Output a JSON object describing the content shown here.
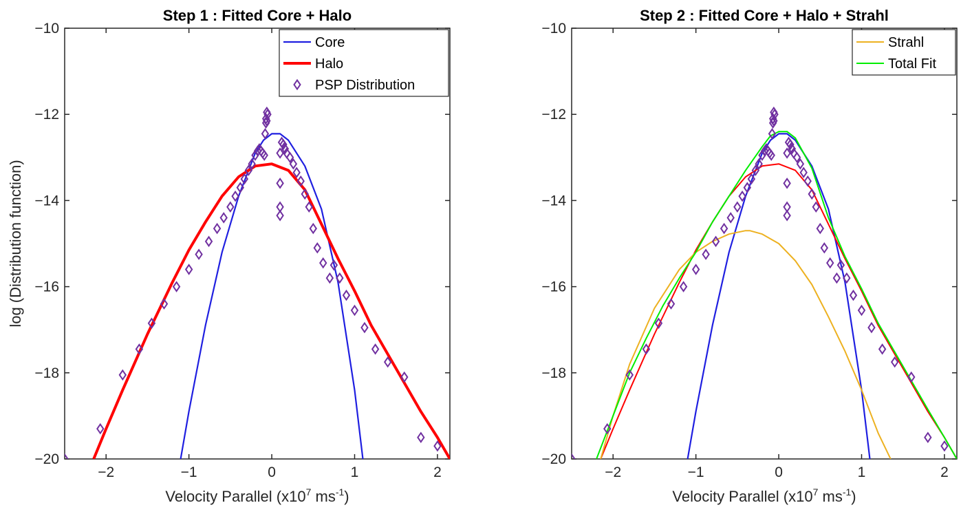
{
  "chart_data": [
    {
      "type": "line",
      "title": "Step 1 : Fitted Core + Halo",
      "xlabel": "Velocity Parallel (x10^7 ms^-1)",
      "xlabel_parts": {
        "main": "Velocity Parallel (x10",
        "exp1": "7",
        "mid": " ms",
        "exp2": "-1",
        "end": ")"
      },
      "ylabel": "log (Distribution function)",
      "xlim": [
        -2.5,
        2.15
      ],
      "ylim": [
        -20,
        -10
      ],
      "xticks": [
        -2,
        -1,
        0,
        1,
        2
      ],
      "yticks": [
        -20,
        -18,
        -16,
        -14,
        -12,
        -10
      ],
      "grid": false,
      "legend_position": "top-right",
      "series": [
        {
          "name": "Core",
          "kind": "line",
          "color": "#1f1fe0",
          "width": 2.2,
          "x": [
            -1.1,
            -1.0,
            -0.8,
            -0.6,
            -0.4,
            -0.2,
            -0.1,
            0.0,
            0.1,
            0.2,
            0.4,
            0.6,
            0.8,
            1.0,
            1.1
          ],
          "y": [
            -20.0,
            -18.9,
            -16.9,
            -15.2,
            -13.9,
            -12.9,
            -12.6,
            -12.45,
            -12.45,
            -12.6,
            -13.2,
            -14.2,
            -15.9,
            -18.4,
            -20.0
          ]
        },
        {
          "name": "Halo",
          "kind": "line",
          "color": "#ff0000",
          "width": 4,
          "x": [
            -2.15,
            -2.0,
            -1.8,
            -1.5,
            -1.2,
            -1.0,
            -0.8,
            -0.6,
            -0.4,
            -0.2,
            0.0,
            0.2,
            0.4,
            0.6,
            0.8,
            1.0,
            1.2,
            1.5,
            1.8,
            2.0,
            2.15
          ],
          "y": [
            -20.0,
            -19.3,
            -18.4,
            -17.1,
            -15.9,
            -15.15,
            -14.5,
            -13.9,
            -13.45,
            -13.2,
            -13.15,
            -13.3,
            -13.75,
            -14.55,
            -15.35,
            -16.1,
            -16.9,
            -17.9,
            -18.9,
            -19.5,
            -20.0
          ]
        },
        {
          "name": "PSP Distribution",
          "kind": "marker",
          "color": "#7030a0",
          "x": [
            -2.5,
            -2.07,
            -1.8,
            -1.6,
            -1.45,
            -1.3,
            -1.15,
            -1.0,
            -0.88,
            -0.76,
            -0.66,
            -0.58,
            -0.5,
            -0.44,
            -0.38,
            -0.33,
            -0.28,
            -0.24,
            -0.2,
            -0.17,
            -0.15,
            -0.13,
            -0.11,
            -0.09,
            -0.08,
            -0.07,
            -0.06,
            -0.05,
            -0.06,
            -0.07,
            0.1,
            0.1,
            0.1,
            0.1,
            0.12,
            0.14,
            0.16,
            0.18,
            0.22,
            0.26,
            0.3,
            0.35,
            0.4,
            0.45,
            0.5,
            0.55,
            0.62,
            0.7,
            0.75,
            0.82,
            0.9,
            1.0,
            1.12,
            1.25,
            1.4,
            1.6,
            1.8,
            2.0
          ],
          "y": [
            -20.0,
            -19.3,
            -18.05,
            -17.45,
            -16.85,
            -16.4,
            -16.0,
            -15.6,
            -15.25,
            -14.95,
            -14.65,
            -14.4,
            -14.15,
            -13.9,
            -13.7,
            -13.5,
            -13.3,
            -13.15,
            -12.95,
            -12.85,
            -12.8,
            -12.85,
            -12.9,
            -12.95,
            -12.45,
            -12.1,
            -11.95,
            -12.0,
            -12.15,
            -12.2,
            -14.35,
            -14.15,
            -13.6,
            -12.9,
            -12.65,
            -12.7,
            -12.8,
            -12.9,
            -13.0,
            -13.15,
            -13.35,
            -13.55,
            -13.85,
            -14.15,
            -14.65,
            -15.1,
            -15.45,
            -15.8,
            -15.5,
            -15.8,
            -16.2,
            -16.55,
            -16.95,
            -17.45,
            -17.75,
            -18.1,
            -19.5,
            -19.7
          ]
        }
      ]
    },
    {
      "type": "line",
      "title": "Step 2 : Fitted Core + Halo + Strahl",
      "xlabel": "Velocity Parallel (x10^7 ms^-1)",
      "xlabel_parts": {
        "main": "Velocity Parallel (x10",
        "exp1": "7",
        "mid": " ms",
        "exp2": "-1",
        "end": ")"
      },
      "ylabel": "",
      "xlim": [
        -2.5,
        2.15
      ],
      "ylim": [
        -20,
        -10
      ],
      "xticks": [
        -2,
        -1,
        0,
        1,
        2
      ],
      "yticks": [
        -20,
        -18,
        -16,
        -14,
        -12,
        -10
      ],
      "grid": false,
      "legend_position": "top-right",
      "series": [
        {
          "name": "Core",
          "kind": "line",
          "color": "#1f1fe0",
          "width": 2.2,
          "legend": false,
          "x": [
            -1.1,
            -1.0,
            -0.8,
            -0.6,
            -0.4,
            -0.2,
            -0.1,
            0.0,
            0.1,
            0.2,
            0.4,
            0.6,
            0.8,
            1.0,
            1.1
          ],
          "y": [
            -20.0,
            -18.9,
            -16.9,
            -15.2,
            -13.9,
            -12.9,
            -12.6,
            -12.45,
            -12.45,
            -12.6,
            -13.2,
            -14.2,
            -15.9,
            -18.4,
            -20.0
          ]
        },
        {
          "name": "Halo",
          "kind": "line",
          "color": "#ff0000",
          "width": 2,
          "legend": false,
          "x": [
            -2.15,
            -2.0,
            -1.8,
            -1.5,
            -1.2,
            -1.0,
            -0.8,
            -0.6,
            -0.4,
            -0.2,
            0.0,
            0.2,
            0.4,
            0.6,
            0.8,
            1.0,
            1.2,
            1.5,
            1.8,
            2.0,
            2.15
          ],
          "y": [
            -20.0,
            -19.3,
            -18.4,
            -17.1,
            -15.9,
            -15.15,
            -14.5,
            -13.9,
            -13.45,
            -13.2,
            -13.15,
            -13.3,
            -13.75,
            -14.55,
            -15.35,
            -16.1,
            -16.9,
            -17.9,
            -18.9,
            -19.5,
            -20.0
          ]
        },
        {
          "name": "Strahl",
          "kind": "line",
          "color": "#edb120",
          "width": 2,
          "x": [
            -2.15,
            -2.0,
            -1.8,
            -1.5,
            -1.2,
            -1.0,
            -0.8,
            -0.6,
            -0.4,
            -0.35,
            -0.2,
            0.0,
            0.2,
            0.4,
            0.6,
            0.8,
            1.0,
            1.2,
            1.35
          ],
          "y": [
            -20.0,
            -19.0,
            -17.8,
            -16.5,
            -15.6,
            -15.2,
            -14.95,
            -14.78,
            -14.7,
            -14.7,
            -14.78,
            -15.0,
            -15.4,
            -15.95,
            -16.7,
            -17.5,
            -18.4,
            -19.4,
            -20.0
          ]
        },
        {
          "name": "Total Fit",
          "kind": "line",
          "color": "#00ee00",
          "width": 2,
          "x": [
            -2.2,
            -2.0,
            -1.8,
            -1.6,
            -1.4,
            -1.2,
            -1.0,
            -0.8,
            -0.6,
            -0.4,
            -0.2,
            -0.1,
            0.0,
            0.1,
            0.2,
            0.4,
            0.6,
            0.8,
            1.0,
            1.2,
            1.5,
            1.8,
            2.0,
            2.15
          ],
          "y": [
            -20.0,
            -19.0,
            -18.0,
            -17.2,
            -16.45,
            -15.8,
            -15.2,
            -14.5,
            -13.9,
            -13.3,
            -12.75,
            -12.5,
            -12.4,
            -12.4,
            -12.55,
            -13.25,
            -14.4,
            -15.3,
            -16.05,
            -16.85,
            -17.85,
            -18.85,
            -19.5,
            -20.0
          ]
        },
        {
          "name": "PSP Distribution",
          "kind": "marker",
          "color": "#7030a0",
          "legend": false,
          "x": [
            -2.5,
            -2.07,
            -1.8,
            -1.6,
            -1.45,
            -1.3,
            -1.15,
            -1.0,
            -0.88,
            -0.76,
            -0.66,
            -0.58,
            -0.5,
            -0.44,
            -0.38,
            -0.33,
            -0.28,
            -0.24,
            -0.2,
            -0.17,
            -0.15,
            -0.13,
            -0.11,
            -0.09,
            -0.08,
            -0.07,
            -0.06,
            -0.05,
            -0.06,
            -0.07,
            0.1,
            0.1,
            0.1,
            0.1,
            0.12,
            0.14,
            0.16,
            0.18,
            0.22,
            0.26,
            0.3,
            0.35,
            0.4,
            0.45,
            0.5,
            0.55,
            0.62,
            0.7,
            0.75,
            0.82,
            0.9,
            1.0,
            1.12,
            1.25,
            1.4,
            1.6,
            1.8,
            2.0
          ],
          "y": [
            -20.0,
            -19.3,
            -18.05,
            -17.45,
            -16.85,
            -16.4,
            -16.0,
            -15.6,
            -15.25,
            -14.95,
            -14.65,
            -14.4,
            -14.15,
            -13.9,
            -13.7,
            -13.5,
            -13.3,
            -13.15,
            -12.95,
            -12.85,
            -12.8,
            -12.85,
            -12.9,
            -12.95,
            -12.45,
            -12.1,
            -11.95,
            -12.0,
            -12.15,
            -12.2,
            -14.35,
            -14.15,
            -13.6,
            -12.9,
            -12.65,
            -12.7,
            -12.8,
            -12.9,
            -13.0,
            -13.15,
            -13.35,
            -13.55,
            -13.85,
            -14.15,
            -14.65,
            -15.1,
            -15.45,
            -15.8,
            -15.5,
            -15.8,
            -16.2,
            -16.55,
            -16.95,
            -17.45,
            -17.75,
            -18.1,
            -19.5,
            -19.7
          ]
        }
      ]
    }
  ]
}
